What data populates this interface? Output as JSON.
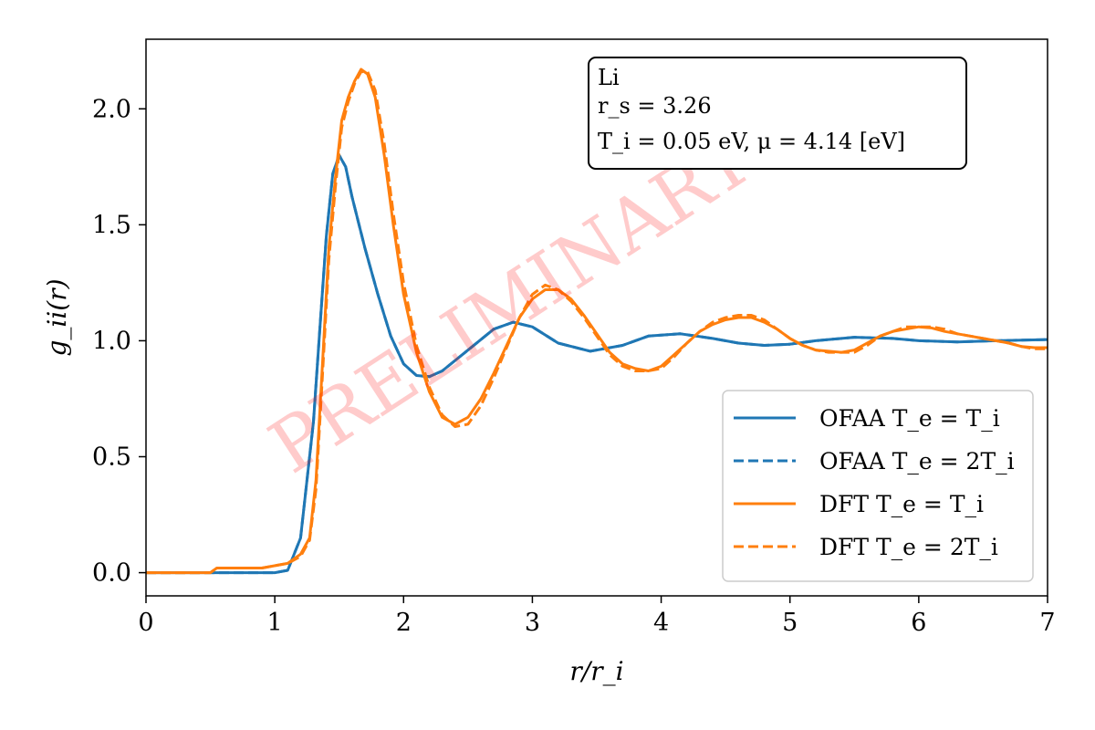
{
  "chart_data": {
    "type": "line",
    "xlabel": "r/r_i",
    "ylabel": "g_ii(r)",
    "xlim": [
      0,
      7
    ],
    "ylim": [
      -0.1,
      2.3
    ],
    "xticks": [
      0,
      1,
      2,
      3,
      4,
      5,
      6,
      7
    ],
    "yticks": [
      0.0,
      0.5,
      1.0,
      1.5,
      2.0
    ],
    "xtick_labels": [
      "0",
      "1",
      "2",
      "3",
      "4",
      "5",
      "6",
      "7"
    ],
    "ytick_labels": [
      "0.0",
      "0.5",
      "1.0",
      "1.5",
      "2.0"
    ],
    "grid": false,
    "legend_position": "lower-right",
    "annotation": {
      "lines": [
        "Li",
        "r_s = 3.26",
        "T_i = 0.05 eV, μ = 4.14 [eV]"
      ]
    },
    "watermark": "PRELIMINARY",
    "series": [
      {
        "name": "OFAA T_e = T_i",
        "color": "#1f77b4",
        "dash": "solid",
        "x": [
          0,
          1.0,
          1.1,
          1.2,
          1.3,
          1.35,
          1.4,
          1.45,
          1.5,
          1.55,
          1.6,
          1.7,
          1.8,
          1.9,
          2.0,
          2.1,
          2.2,
          2.3,
          2.5,
          2.7,
          2.85,
          3.0,
          3.2,
          3.45,
          3.7,
          3.9,
          4.15,
          4.4,
          4.6,
          4.8,
          5.0,
          5.2,
          5.5,
          5.8,
          6.0,
          6.3,
          6.6,
          7.0
        ],
        "y": [
          0,
          0,
          0.01,
          0.15,
          0.65,
          1.05,
          1.45,
          1.72,
          1.8,
          1.75,
          1.62,
          1.4,
          1.2,
          1.02,
          0.9,
          0.85,
          0.845,
          0.87,
          0.96,
          1.05,
          1.08,
          1.06,
          0.99,
          0.955,
          0.98,
          1.02,
          1.03,
          1.01,
          0.99,
          0.98,
          0.985,
          1.0,
          1.015,
          1.01,
          1.0,
          0.995,
          1.0,
          1.005
        ]
      },
      {
        "name": "OFAA T_e = 2T_i",
        "color": "#1f77b4",
        "dash": "dashed",
        "x": [
          0,
          1.0,
          1.1,
          1.2,
          1.3,
          1.35,
          1.4,
          1.45,
          1.5,
          1.55,
          1.6,
          1.7,
          1.8,
          1.9,
          2.0,
          2.1,
          2.2,
          2.3,
          2.5,
          2.7,
          2.85,
          3.0,
          3.2,
          3.45,
          3.7,
          3.9,
          4.15,
          4.4,
          4.6,
          4.8,
          5.0,
          5.2,
          5.5,
          5.8,
          6.0,
          6.3,
          6.6,
          7.0
        ],
        "y": [
          0,
          0,
          0.01,
          0.15,
          0.65,
          1.05,
          1.45,
          1.72,
          1.8,
          1.75,
          1.62,
          1.4,
          1.2,
          1.02,
          0.9,
          0.85,
          0.845,
          0.87,
          0.96,
          1.05,
          1.08,
          1.06,
          0.99,
          0.955,
          0.98,
          1.02,
          1.03,
          1.01,
          0.99,
          0.98,
          0.985,
          1.0,
          1.015,
          1.01,
          1.0,
          0.995,
          1.0,
          1.005
        ]
      },
      {
        "name": "DFT T_e = T_i",
        "color": "#ff7f0e",
        "dash": "solid",
        "x": [
          0,
          0.5,
          0.55,
          0.7,
          0.9,
          1.1,
          1.2,
          1.27,
          1.32,
          1.37,
          1.42,
          1.47,
          1.52,
          1.57,
          1.62,
          1.67,
          1.72,
          1.78,
          1.85,
          1.92,
          2.0,
          2.1,
          2.2,
          2.3,
          2.4,
          2.5,
          2.6,
          2.7,
          2.8,
          2.9,
          3.0,
          3.1,
          3.2,
          3.3,
          3.4,
          3.5,
          3.6,
          3.7,
          3.8,
          3.9,
          4.0,
          4.1,
          4.2,
          4.3,
          4.4,
          4.5,
          4.6,
          4.7,
          4.8,
          4.9,
          5.0,
          5.1,
          5.2,
          5.3,
          5.4,
          5.5,
          5.6,
          5.7,
          5.8,
          5.9,
          6.0,
          6.1,
          6.2,
          6.3,
          6.4,
          6.5,
          6.6,
          6.7,
          6.8,
          6.9,
          7.0
        ],
        "y": [
          0,
          0,
          0.02,
          0.02,
          0.02,
          0.04,
          0.08,
          0.15,
          0.4,
          0.9,
          1.4,
          1.7,
          1.95,
          2.05,
          2.12,
          2.17,
          2.15,
          2.05,
          1.8,
          1.5,
          1.2,
          0.95,
          0.78,
          0.67,
          0.64,
          0.67,
          0.75,
          0.86,
          0.98,
          1.1,
          1.18,
          1.22,
          1.22,
          1.18,
          1.11,
          1.03,
          0.95,
          0.9,
          0.88,
          0.87,
          0.89,
          0.94,
          0.99,
          1.04,
          1.07,
          1.09,
          1.1,
          1.1,
          1.08,
          1.05,
          1.01,
          0.98,
          0.96,
          0.955,
          0.95,
          0.96,
          0.99,
          1.02,
          1.04,
          1.05,
          1.06,
          1.055,
          1.04,
          1.03,
          1.02,
          1.01,
          1.0,
          0.99,
          0.975,
          0.97,
          0.97
        ]
      },
      {
        "name": "DFT T_e = 2T_i",
        "color": "#ff7f0e",
        "dash": "dashed",
        "x": [
          0,
          0.5,
          0.55,
          0.7,
          0.9,
          1.1,
          1.2,
          1.27,
          1.32,
          1.37,
          1.42,
          1.47,
          1.52,
          1.57,
          1.62,
          1.67,
          1.72,
          1.78,
          1.85,
          1.92,
          2.0,
          2.1,
          2.2,
          2.3,
          2.4,
          2.5,
          2.6,
          2.7,
          2.8,
          2.9,
          3.0,
          3.1,
          3.2,
          3.3,
          3.4,
          3.5,
          3.6,
          3.7,
          3.8,
          3.9,
          4.0,
          4.1,
          4.2,
          4.3,
          4.4,
          4.5,
          4.6,
          4.7,
          4.8,
          4.9,
          5.0,
          5.1,
          5.2,
          5.3,
          5.4,
          5.5,
          5.6,
          5.7,
          5.8,
          5.9,
          6.0,
          6.1,
          6.2,
          6.3,
          6.4,
          6.5,
          6.6,
          6.7,
          6.8,
          6.9,
          7.0
        ],
        "y": [
          0,
          0,
          0.02,
          0.02,
          0.02,
          0.04,
          0.07,
          0.14,
          0.36,
          0.85,
          1.35,
          1.66,
          1.92,
          2.03,
          2.11,
          2.16,
          2.16,
          2.08,
          1.85,
          1.55,
          1.25,
          0.98,
          0.8,
          0.68,
          0.63,
          0.64,
          0.72,
          0.84,
          0.97,
          1.1,
          1.2,
          1.24,
          1.22,
          1.17,
          1.1,
          1.02,
          0.94,
          0.89,
          0.87,
          0.87,
          0.88,
          0.93,
          0.99,
          1.04,
          1.08,
          1.1,
          1.11,
          1.11,
          1.09,
          1.05,
          1.01,
          0.98,
          0.96,
          0.95,
          0.95,
          0.95,
          0.98,
          1.02,
          1.04,
          1.06,
          1.06,
          1.06,
          1.05,
          1.03,
          1.02,
          1.01,
          1.0,
          0.99,
          0.975,
          0.965,
          0.965
        ]
      }
    ]
  }
}
